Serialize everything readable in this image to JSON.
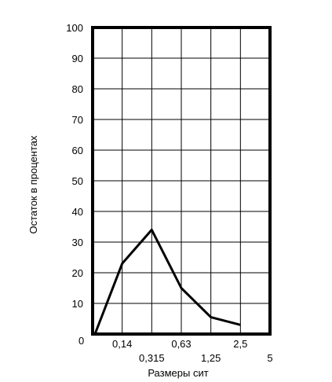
{
  "chart_data": {
    "type": "line",
    "xlabel": "Размеры сит",
    "ylabel": "Остаток в процентах",
    "ylim": [
      0,
      100
    ],
    "y_ticks": [
      "0",
      "10",
      "20",
      "30",
      "40",
      "50",
      "60",
      "70",
      "80",
      "90",
      "100"
    ],
    "x_ticks": [
      {
        "label": "0,14",
        "row": "upper"
      },
      {
        "label": "0,315",
        "row": "lower"
      },
      {
        "label": "0,63",
        "row": "upper"
      },
      {
        "label": "1,25",
        "row": "lower"
      },
      {
        "label": "2,5",
        "row": "upper"
      },
      {
        "label": "5",
        "row": "lower"
      }
    ],
    "categories": [
      "",
      "0,14",
      "0,315",
      "0,63",
      "1,25",
      "2,5",
      "5"
    ],
    "values": [
      0,
      23,
      34,
      15,
      5.5,
      3,
      null
    ],
    "grid": true,
    "line_color": "#000000"
  }
}
